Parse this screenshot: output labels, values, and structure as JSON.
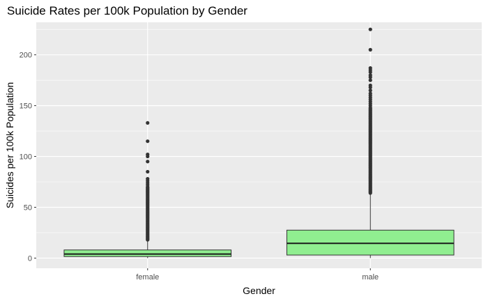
{
  "chart_data": {
    "type": "box",
    "title": "Suicide Rates per 100k Population by Gender",
    "xlabel": "Gender",
    "ylabel": "Suicides per 100k Population",
    "categories": [
      "female",
      "male"
    ],
    "ylim": [
      -10,
      232
    ],
    "yticks": [
      0,
      50,
      100,
      150,
      200
    ],
    "grid": true,
    "colors": {
      "box_fill": "#90EE90",
      "panel": "#EBEBEB",
      "grid": "#FFFFFF",
      "outlier": "#333333"
    },
    "boxes": [
      {
        "category": "female",
        "min": 0,
        "q1": 1.5,
        "median": 4.0,
        "q3": 8.0,
        "whisker_high": 17.5,
        "outliers": [
          18,
          19,
          20,
          21,
          22,
          23,
          24,
          25,
          26,
          27,
          28,
          29,
          30,
          31,
          32,
          33,
          34,
          35,
          36,
          37,
          38,
          39,
          40,
          41,
          42,
          43,
          44,
          45,
          46,
          47,
          48,
          49,
          50,
          51,
          52,
          53,
          54,
          55,
          56,
          57,
          58,
          59,
          60,
          61,
          62,
          63,
          64,
          65,
          66,
          67,
          68,
          69,
          70,
          72,
          74,
          76,
          78,
          85,
          95,
          100,
          102,
          115,
          133
        ]
      },
      {
        "category": "male",
        "min": 0,
        "q1": 3.0,
        "median": 14.5,
        "q3": 27.5,
        "whisker_high": 63.5,
        "outliers": [
          64,
          65,
          66,
          67,
          68,
          69,
          70,
          71,
          72,
          73,
          74,
          75,
          76,
          77,
          78,
          79,
          80,
          81,
          82,
          83,
          84,
          85,
          86,
          87,
          88,
          89,
          90,
          91,
          92,
          93,
          94,
          95,
          96,
          97,
          98,
          99,
          100,
          101,
          102,
          103,
          104,
          105,
          106,
          107,
          108,
          109,
          110,
          111,
          112,
          113,
          114,
          115,
          116,
          117,
          118,
          119,
          120,
          121,
          122,
          123,
          124,
          125,
          126,
          127,
          128,
          129,
          130,
          131,
          132,
          133,
          134,
          135,
          136,
          137,
          138,
          139,
          140,
          141,
          142,
          143,
          144,
          145,
          146,
          147,
          148,
          150,
          152,
          154,
          156,
          158,
          160,
          162,
          165,
          168,
          170,
          175,
          178,
          180,
          183,
          185,
          187,
          205,
          225
        ]
      }
    ]
  }
}
